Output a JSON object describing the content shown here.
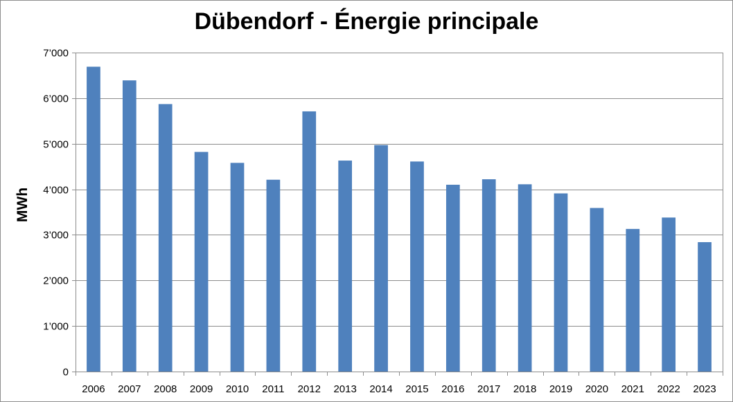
{
  "chart_data": {
    "type": "bar",
    "title": "Dübendorf - Énergie principale",
    "xlabel": "",
    "ylabel": "MWh",
    "categories": [
      "2006",
      "2007",
      "2008",
      "2009",
      "2010",
      "2011",
      "2012",
      "2013",
      "2014",
      "2015",
      "2016",
      "2017",
      "2018",
      "2019",
      "2020",
      "2021",
      "2022",
      "2023"
    ],
    "values": [
      6690,
      6390,
      5870,
      4820,
      4580,
      4210,
      5710,
      4630,
      4970,
      4610,
      4100,
      4220,
      4110,
      3910,
      3590,
      3130,
      3380,
      2840
    ],
    "ylim": [
      0,
      7000
    ],
    "yticks": [
      0,
      1000,
      2000,
      3000,
      4000,
      5000,
      6000,
      7000
    ],
    "ytick_labels": [
      "0",
      "1’000",
      "2’000",
      "3’000",
      "4’000",
      "5’000",
      "6’000",
      "7’000"
    ],
    "grid": true,
    "legend": "none",
    "bar_color": "#4f81bd",
    "grid_color": "#8c8c8c"
  }
}
